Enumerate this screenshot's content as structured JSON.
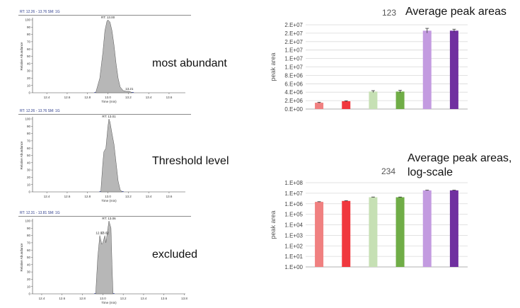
{
  "chart_data": [
    {
      "type": "area",
      "header": "RT: 12.26 - 13.76  SM: 1G",
      "ylabel": "Relative Abundance",
      "xlabel": "Time (min)",
      "xlim": [
        12.26,
        13.76
      ],
      "ylim": [
        0,
        100
      ],
      "x_ticks": [
        "12.4",
        "12.6",
        "12.8",
        "13.0",
        "13.2",
        "13.4",
        "13.6"
      ],
      "y_ticks": [
        "0",
        "10",
        "20",
        "30",
        "40",
        "50",
        "60",
        "70",
        "80",
        "90",
        "100"
      ],
      "peak_labels": [
        {
          "text": "RT: 13.00",
          "x": 13.0,
          "y": 100
        },
        {
          "text": "13.21",
          "x": 13.21,
          "y": 2
        }
      ],
      "side_label": "most abundant",
      "x": [
        12.88,
        12.92,
        12.95,
        12.97,
        12.99,
        13.0,
        13.02,
        13.04,
        13.06,
        13.08,
        13.1,
        13.12,
        13.15,
        13.18,
        13.21,
        13.24
      ],
      "y": [
        0,
        20,
        55,
        85,
        98,
        100,
        97,
        85,
        65,
        40,
        20,
        8,
        3,
        2,
        2,
        0
      ]
    },
    {
      "type": "area",
      "header": "RT: 12.26 - 13.76  SM: 1G",
      "ylabel": "Relative Abundance",
      "xlabel": "Time (min)",
      "xlim": [
        12.26,
        13.76
      ],
      "ylim": [
        0,
        100
      ],
      "x_ticks": [
        "12.4",
        "12.6",
        "12.8",
        "13.0",
        "13.2",
        "13.4",
        "13.6"
      ],
      "y_ticks": [
        "0",
        "10",
        "20",
        "30",
        "40",
        "50",
        "60",
        "70",
        "80",
        "90",
        "100"
      ],
      "peak_labels": [
        {
          "text": "RT: 13.01",
          "x": 13.01,
          "y": 100
        }
      ],
      "side_label": "Threshold level",
      "x": [
        12.93,
        12.95,
        12.96,
        12.98,
        12.99,
        13.0,
        13.01,
        13.02,
        13.04,
        13.06,
        13.08,
        13.1,
        13.12,
        13.14
      ],
      "y": [
        0,
        40,
        55,
        60,
        75,
        90,
        100,
        96,
        80,
        65,
        40,
        15,
        3,
        0
      ]
    },
    {
      "type": "area",
      "header": "RT: 12.31 - 13.81  SM: 1G",
      "ylabel": "Relative Abundance",
      "xlabel": "Time (min)",
      "xlim": [
        12.31,
        13.81
      ],
      "ylim": [
        0,
        100
      ],
      "x_ticks": [
        "12.4",
        "12.6",
        "12.8",
        "13.0",
        "13.2",
        "13.4",
        "13.6",
        "13.8"
      ],
      "y_ticks": [
        "0",
        "10",
        "20",
        "30",
        "40",
        "50",
        "60",
        "70",
        "80",
        "90",
        "100"
      ],
      "peak_labels": [
        {
          "text": "12.97",
          "x": 12.97,
          "y": 80
        },
        {
          "text": "13.02",
          "x": 13.02,
          "y": 80
        },
        {
          "text": "RT: 13.06",
          "x": 13.06,
          "y": 100
        }
      ],
      "side_label": "excluded",
      "x": [
        12.93,
        12.95,
        12.97,
        12.99,
        13.0,
        13.02,
        13.03,
        13.05,
        13.06,
        13.08,
        13.09,
        13.1
      ],
      "y": [
        0,
        50,
        80,
        68,
        70,
        80,
        70,
        90,
        100,
        90,
        40,
        0
      ]
    },
    {
      "type": "bar",
      "id": "123",
      "title": "Average peak areas",
      "ylabel": "peak area",
      "ylim": [
        0,
        20000000
      ],
      "y_ticks": [
        "0.E+00",
        "2.E+06",
        "4.E+06",
        "6.E+06",
        "8.E+06",
        "1.E+07",
        "1.E+07",
        "1.E+07",
        "2.E+07",
        "2.E+07",
        "2.E+07"
      ],
      "values": [
        1500000,
        1850000,
        4150000,
        4150000,
        18600000,
        18600000
      ],
      "errors": [
        120000,
        100000,
        220000,
        300000,
        550000,
        350000
      ],
      "colors": [
        "#f08080",
        "#f0383e",
        "#c6e0b4",
        "#70ad47",
        "#c39be0",
        "#7030a0"
      ]
    },
    {
      "type": "bar",
      "id": "234",
      "title": "Average peak areas,",
      "title2": "log-scale",
      "ylabel": "peak area",
      "log_scale": true,
      "ylim": [
        1,
        100000000
      ],
      "y_ticks": [
        "1.E+00",
        "1.E+01",
        "1.E+02",
        "1.E+03",
        "1.E+04",
        "1.E+05",
        "1.E+06",
        "1.E+07",
        "1.E+08"
      ],
      "values": [
        1500000,
        1850000,
        4150000,
        4150000,
        18600000,
        18600000
      ],
      "colors": [
        "#f08080",
        "#f0383e",
        "#c6e0b4",
        "#70ad47",
        "#c39be0",
        "#7030a0"
      ]
    }
  ]
}
